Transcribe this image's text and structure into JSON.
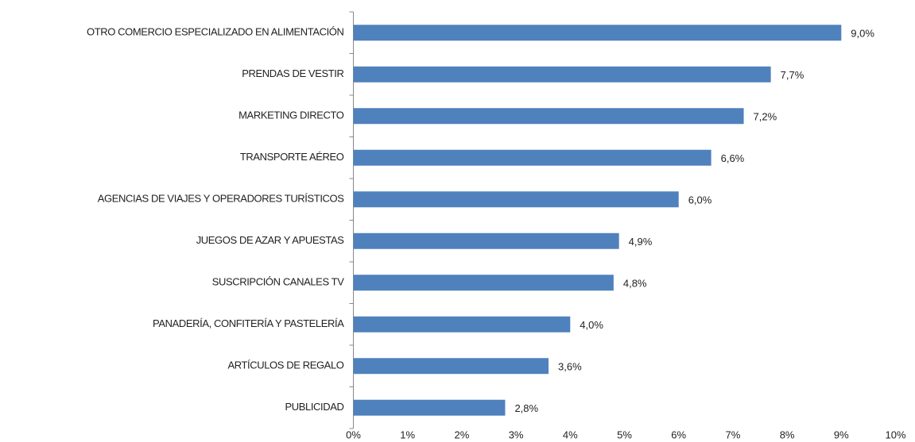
{
  "chart_data": {
    "type": "bar",
    "orientation": "horizontal",
    "categories": [
      "OTRO COMERCIO ESPECIALIZADO EN ALIMENTACIÓN",
      "PRENDAS DE VESTIR",
      "MARKETING DIRECTO",
      "TRANSPORTE AÉREO",
      "AGENCIAS DE VIAJES Y OPERADORES TURÍSTICOS",
      "JUEGOS DE AZAR Y APUESTAS",
      "SUSCRIPCIÓN CANALES TV",
      "PANADERÍA, CONFITERÍA Y PASTELERÍA",
      "ARTÍCULOS DE REGALO",
      "PUBLICIDAD"
    ],
    "values": [
      9.0,
      7.7,
      7.2,
      6.6,
      6.0,
      4.9,
      4.8,
      4.0,
      3.6,
      2.8
    ],
    "value_labels": [
      "9,0%",
      "7,7%",
      "7,2%",
      "6,6%",
      "6,0%",
      "4,9%",
      "4,8%",
      "4,0%",
      "3,6%",
      "2,8%"
    ],
    "color": "#4f81bd",
    "xlim": [
      0,
      10
    ],
    "xticks": [
      {
        "value": 0,
        "label": "0%"
      },
      {
        "value": 1,
        "label": "1%"
      },
      {
        "value": 2,
        "label": "2%"
      },
      {
        "value": 3,
        "label": "3%"
      },
      {
        "value": 4,
        "label": "4%"
      },
      {
        "value": 5,
        "label": "5%"
      },
      {
        "value": 6,
        "label": "6%"
      },
      {
        "value": 7,
        "label": "7%"
      },
      {
        "value": 8,
        "label": "8%"
      },
      {
        "value": 9,
        "label": "9%"
      },
      {
        "value": 10,
        "label": "10%"
      }
    ],
    "grid": false
  }
}
